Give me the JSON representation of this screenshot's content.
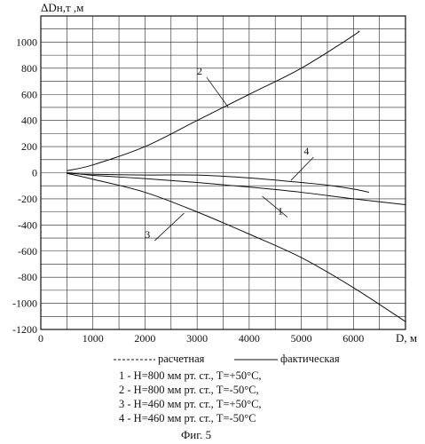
{
  "chart_data": {
    "type": "line",
    "ylabel": "ΔDн,т ,м",
    "xlabel": "D, м",
    "xlim": [
      0,
      7000
    ],
    "ylim": [
      -1200,
      1200
    ],
    "xticks": [
      0,
      1000,
      2000,
      3000,
      4000,
      5000,
      6000
    ],
    "yticks": [
      1000,
      800,
      600,
      400,
      200,
      0,
      -200,
      -400,
      -600,
      -800,
      -1000,
      -1200
    ],
    "grid": true,
    "series": [
      {
        "name": "1",
        "style": "фактическая",
        "x": [
          500,
          1000,
          2000,
          3000,
          4000,
          5000,
          6000,
          7000
        ],
        "y": [
          0,
          -20,
          -45,
          -75,
          -110,
          -150,
          -200,
          -245
        ]
      },
      {
        "name": "2",
        "style": "фактическая",
        "x": [
          500,
          1000,
          2000,
          3000,
          4000,
          5000,
          6000,
          6100
        ],
        "y": [
          15,
          60,
          200,
          400,
          600,
          800,
          1050,
          1085
        ]
      },
      {
        "name": "3",
        "style": "фактическая",
        "x": [
          500,
          1000,
          2000,
          3000,
          4000,
          5000,
          6000,
          7000
        ],
        "y": [
          -5,
          -50,
          -150,
          -300,
          -470,
          -650,
          -880,
          -1140
        ]
      },
      {
        "name": "4",
        "style": "фактическая",
        "x": [
          500,
          1000,
          2000,
          3000,
          4000,
          5000,
          5500,
          6000,
          6300
        ],
        "y": [
          -5,
          -12,
          -18,
          -18,
          -40,
          -75,
          -95,
          -125,
          -150
        ]
      }
    ],
    "curve_labels": [
      {
        "text": "2",
        "x": 3100,
        "y": 750,
        "leader_to": [
          3600,
          500
        ]
      },
      {
        "text": "4",
        "x": 5150,
        "y": 140,
        "leader_to": [
          4800,
          -60
        ]
      },
      {
        "text": "1",
        "x": 4650,
        "y": -320,
        "leader_to": [
          4250,
          -180
        ]
      },
      {
        "text": "3",
        "x": 2100,
        "y": -500,
        "leader_to": [
          2750,
          -310
        ]
      }
    ]
  },
  "legend": {
    "dashed_label": "расчетная",
    "solid_label": "фактическая",
    "entries": [
      "1 - H=800 мм рт. ст., Т=+50°С,",
      "2 - H=800 мм рт. ст., Т=-50°С,",
      "3 - H=460 мм рт. ст., Т=+50°С,",
      "4 - H=460 мм рт. ст., Т=-50°С"
    ]
  },
  "caption": "Фиг. 5"
}
